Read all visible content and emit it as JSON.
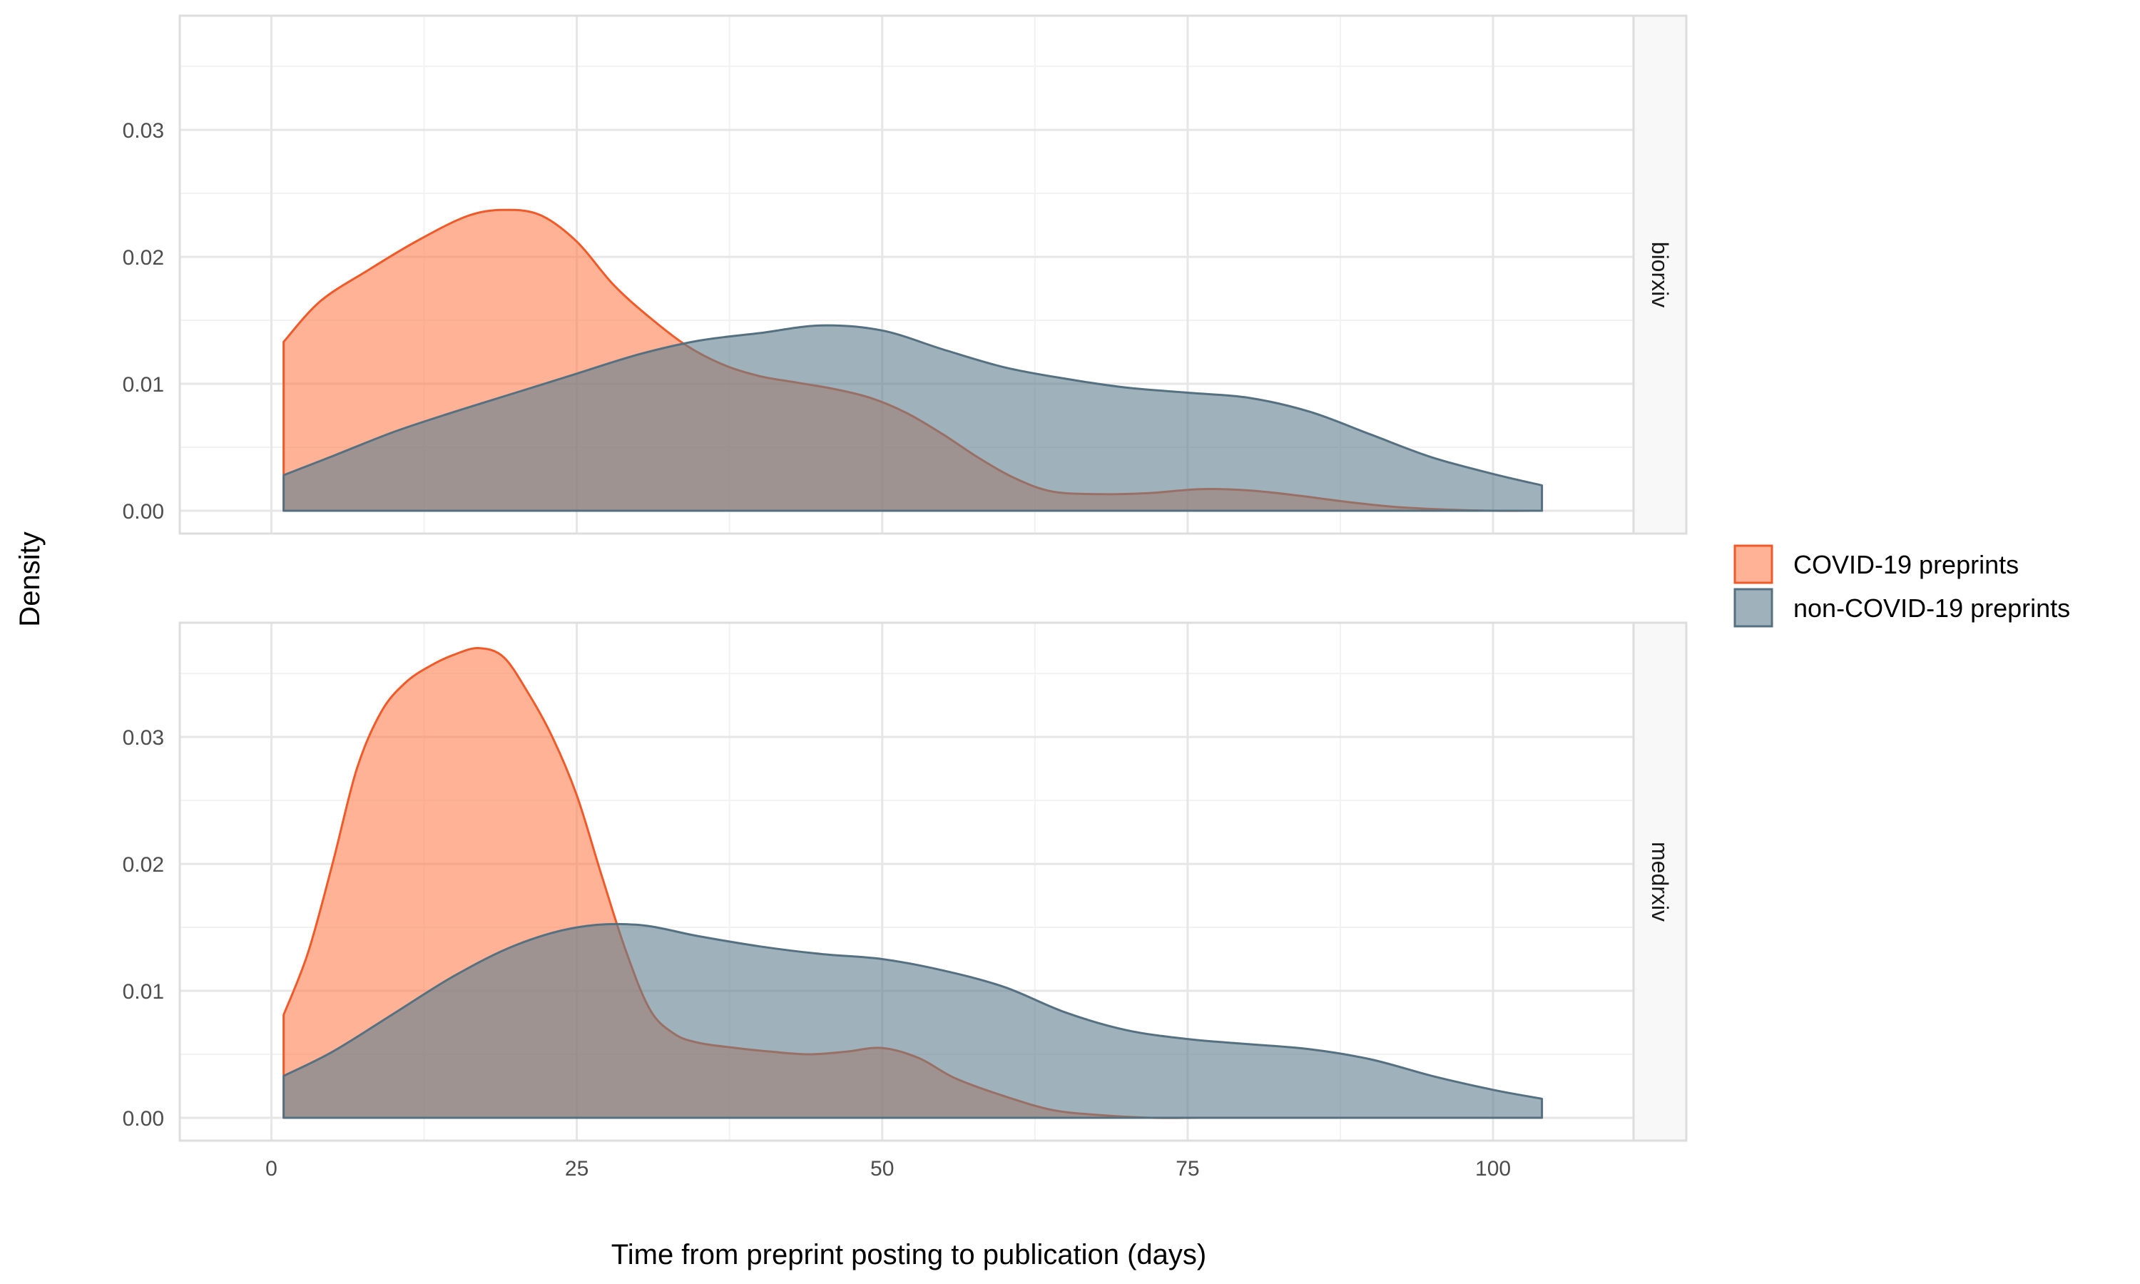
{
  "chart_data": {
    "type": "area",
    "subtype": "density",
    "xlabel": "Time from preprint posting to publication (days)",
    "ylabel": "Density",
    "xlim": [
      -7.5,
      111.5
    ],
    "ylim": [
      -0.0018,
      0.039
    ],
    "x_ticks": [
      0,
      25,
      50,
      75,
      100
    ],
    "x_tick_labels": [
      "0",
      "25",
      "50",
      "75",
      "100"
    ],
    "y_ticks": [
      0,
      0.01,
      0.02,
      0.03
    ],
    "y_tick_labels": [
      "0.00",
      "0.01",
      "0.02",
      "0.03"
    ],
    "grid": true,
    "legend_position": "right",
    "colors": {
      "covid_fill": "#ff7f50",
      "covid_line": "#f05a28",
      "noncovid_fill": "#5f7f8f",
      "noncovid_line": "#557080",
      "strip_bg": "#f8f8f8",
      "panel_border": "#dddddd",
      "grid_major": "#e6e6e6",
      "grid_minor": "#f2f2f2"
    },
    "legend": [
      {
        "label": "COVID-19 preprints",
        "key": "covid"
      },
      {
        "label": "non-COVID-19 preprints",
        "key": "noncovid"
      }
    ],
    "facets": [
      {
        "label": "biorxiv",
        "series": [
          {
            "name": "COVID-19 preprints",
            "key": "covid",
            "x": [
              1,
              4,
              8,
              12,
              16,
              19,
              22,
              25,
              28,
              31,
              34,
              37,
              40,
              43,
              46,
              49,
              52,
              55,
              58,
              61,
              64,
              68,
              72,
              76,
              80,
              84,
              88,
              92,
              96,
              100,
              104
            ],
            "y": [
              0.0133,
              0.0165,
              0.019,
              0.0213,
              0.0232,
              0.0237,
              0.0233,
              0.0212,
              0.0178,
              0.0152,
              0.013,
              0.0115,
              0.0106,
              0.0101,
              0.0096,
              0.0089,
              0.0077,
              0.006,
              0.0041,
              0.0025,
              0.0015,
              0.0013,
              0.0014,
              0.0017,
              0.0016,
              0.0012,
              0.0007,
              0.0003,
              0.0001,
              0.0,
              0.0
            ]
          },
          {
            "name": "non-COVID-19 preprints",
            "key": "noncovid",
            "x": [
              1,
              5,
              10,
              15,
              20,
              25,
              30,
              35,
              40,
              45,
              50,
              55,
              60,
              65,
              70,
              75,
              80,
              85,
              90,
              95,
              100,
              104
            ],
            "y": [
              0.0028,
              0.0043,
              0.0062,
              0.0078,
              0.0093,
              0.0108,
              0.0123,
              0.0134,
              0.014,
              0.0146,
              0.0142,
              0.0127,
              0.0113,
              0.0104,
              0.0097,
              0.0093,
              0.0089,
              0.0078,
              0.006,
              0.0042,
              0.0029,
              0.002
            ]
          }
        ]
      },
      {
        "label": "medrxiv",
        "series": [
          {
            "name": "COVID-19 preprints",
            "key": "covid",
            "x": [
              1,
              3,
              5,
              7,
              9,
              11,
              13,
              15,
              17,
              19,
              21,
              23,
              25,
              27,
              29,
              31,
              33,
              35,
              38,
              41,
              44,
              47,
              50,
              53,
              56,
              60,
              64,
              68,
              72,
              76,
              80,
              90,
              104
            ],
            "y": [
              0.0081,
              0.013,
              0.02,
              0.0275,
              0.032,
              0.0343,
              0.0356,
              0.0365,
              0.037,
              0.0363,
              0.0335,
              0.03,
              0.0254,
              0.0192,
              0.0132,
              0.0085,
              0.0066,
              0.0059,
              0.0055,
              0.0052,
              0.005,
              0.0052,
              0.0055,
              0.0047,
              0.0031,
              0.0017,
              0.0006,
              0.0002,
              0.0,
              0.0,
              0.0,
              0.0,
              0.0
            ]
          },
          {
            "name": "non-COVID-19 preprints",
            "key": "noncovid",
            "x": [
              1,
              5,
              10,
              15,
              20,
              25,
              30,
              35,
              40,
              45,
              50,
              55,
              60,
              65,
              70,
              75,
              80,
              85,
              90,
              95,
              100,
              104
            ],
            "y": [
              0.0033,
              0.0052,
              0.0082,
              0.0112,
              0.0136,
              0.015,
              0.0152,
              0.0143,
              0.0135,
              0.0129,
              0.0125,
              0.0116,
              0.0103,
              0.0083,
              0.0069,
              0.0062,
              0.0058,
              0.0054,
              0.0046,
              0.0033,
              0.0022,
              0.0015
            ]
          }
        ]
      }
    ]
  }
}
